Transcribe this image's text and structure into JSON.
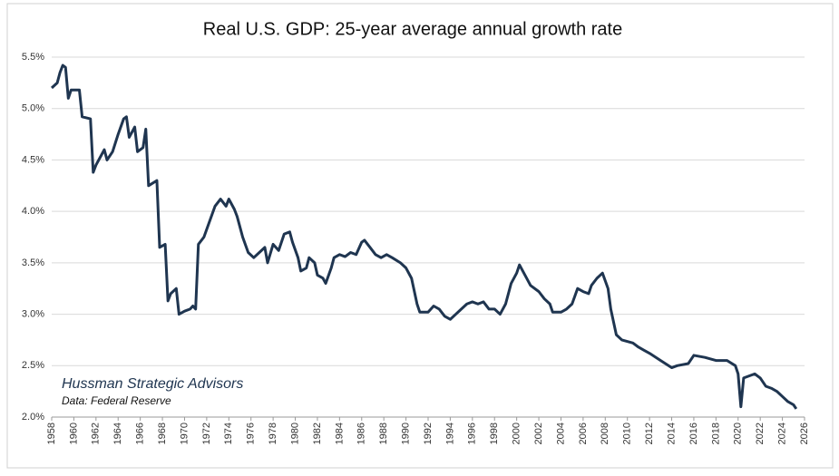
{
  "chart_data": {
    "type": "line",
    "title": "Real U.S. GDP: 25-year average annual growth rate",
    "annotations": [
      "Hussman Strategic Advisors",
      "Data: Federal Reserve"
    ],
    "x": [
      1958.0,
      1958.5,
      1958.75,
      1959.0,
      1959.25,
      1959.5,
      1959.75,
      1960.5,
      1960.75,
      1961.5,
      1961.75,
      1962.0,
      1962.5,
      1962.75,
      1963.0,
      1963.5,
      1964.0,
      1964.5,
      1964.75,
      1965.0,
      1965.5,
      1965.75,
      1966.25,
      1966.5,
      1966.75,
      1967.5,
      1967.75,
      1968.25,
      1968.5,
      1968.75,
      1969.25,
      1969.5,
      1970.0,
      1970.5,
      1970.75,
      1971.0,
      1971.25,
      1971.75,
      1972.25,
      1972.75,
      1973.25,
      1973.75,
      1974.0,
      1974.5,
      1974.75,
      1975.25,
      1975.75,
      1976.25,
      1976.75,
      1977.25,
      1977.5,
      1978.0,
      1978.5,
      1979.0,
      1979.5,
      1979.75,
      1980.25,
      1980.5,
      1981.0,
      1981.25,
      1981.75,
      1982.0,
      1982.5,
      1982.75,
      1983.25,
      1983.5,
      1984.0,
      1984.5,
      1985.0,
      1985.5,
      1986.0,
      1986.25,
      1986.75,
      1987.25,
      1987.75,
      1988.25,
      1988.75,
      1989.5,
      1990.0,
      1990.5,
      1991.0,
      1991.25,
      1992.0,
      1992.5,
      1993.0,
      1993.5,
      1994.0,
      1994.5,
      1995.0,
      1995.5,
      1996.0,
      1996.5,
      1997.0,
      1997.5,
      1998.0,
      1998.5,
      1999.0,
      1999.5,
      2000.0,
      2000.25,
      2000.75,
      2001.25,
      2002.0,
      2002.5,
      2003.0,
      2003.25,
      2004.0,
      2004.5,
      2005.0,
      2005.5,
      2006.0,
      2006.5,
      2006.75,
      2007.25,
      2007.75,
      2008.25,
      2008.5,
      2009.0,
      2009.5,
      2010.5,
      2011.0,
      2011.5,
      2012.0,
      2013.0,
      2014.0,
      2014.5,
      2015.5,
      2016.0,
      2017.0,
      2018.0,
      2019.0,
      2019.75,
      2020.0,
      2020.25,
      2020.5,
      2021.0,
      2021.5,
      2022.0,
      2022.5,
      2023.0,
      2023.5,
      2024.0,
      2024.5,
      2025.0,
      2025.25
    ],
    "series": [
      {
        "name": "25-year average annual growth rate",
        "color": "#1f3550",
        "values": [
          5.2,
          5.25,
          5.35,
          5.42,
          5.4,
          5.1,
          5.18,
          5.18,
          4.92,
          4.9,
          4.38,
          4.45,
          4.55,
          4.6,
          4.5,
          4.58,
          4.75,
          4.9,
          4.92,
          4.72,
          4.82,
          4.58,
          4.62,
          4.8,
          4.25,
          4.3,
          3.65,
          3.68,
          3.13,
          3.2,
          3.25,
          3.0,
          3.03,
          3.05,
          3.08,
          3.05,
          3.68,
          3.75,
          3.9,
          4.05,
          4.12,
          4.05,
          4.12,
          4.02,
          3.95,
          3.75,
          3.6,
          3.55,
          3.6,
          3.65,
          3.5,
          3.68,
          3.62,
          3.78,
          3.8,
          3.7,
          3.55,
          3.42,
          3.45,
          3.55,
          3.5,
          3.38,
          3.35,
          3.3,
          3.45,
          3.55,
          3.58,
          3.56,
          3.6,
          3.58,
          3.7,
          3.72,
          3.65,
          3.58,
          3.55,
          3.58,
          3.55,
          3.5,
          3.45,
          3.35,
          3.1,
          3.02,
          3.02,
          3.08,
          3.05,
          2.98,
          2.95,
          3.0,
          3.05,
          3.1,
          3.12,
          3.1,
          3.12,
          3.05,
          3.05,
          3.0,
          3.1,
          3.3,
          3.4,
          3.48,
          3.38,
          3.28,
          3.22,
          3.15,
          3.1,
          3.02,
          3.02,
          3.05,
          3.1,
          3.25,
          3.22,
          3.2,
          3.28,
          3.35,
          3.4,
          3.25,
          3.05,
          2.8,
          2.75,
          2.72,
          2.68,
          2.65,
          2.62,
          2.55,
          2.48,
          2.5,
          2.52,
          2.6,
          2.58,
          2.55,
          2.55,
          2.5,
          2.42,
          2.1,
          2.38,
          2.4,
          2.42,
          2.38,
          2.3,
          2.28,
          2.25,
          2.2,
          2.15,
          2.12,
          2.08
        ]
      }
    ],
    "xlim": [
      1958,
      2026
    ],
    "xticks": [
      1958,
      1960,
      1962,
      1964,
      1966,
      1968,
      1970,
      1972,
      1974,
      1976,
      1978,
      1980,
      1982,
      1984,
      1986,
      1988,
      1990,
      1992,
      1994,
      1996,
      1998,
      2000,
      2002,
      2004,
      2006,
      2008,
      2010,
      2012,
      2014,
      2016,
      2018,
      2020,
      2022,
      2024,
      2026
    ],
    "ylim": [
      2.0,
      5.5
    ],
    "yticks": [
      {
        "value": 2.0,
        "label": "2.0%"
      },
      {
        "value": 2.5,
        "label": "2.5%"
      },
      {
        "value": 3.0,
        "label": "3.0%"
      },
      {
        "value": 3.5,
        "label": "3.5%"
      },
      {
        "value": 4.0,
        "label": "4.0%"
      },
      {
        "value": 4.5,
        "label": "4.5%"
      },
      {
        "value": 5.0,
        "label": "5.0%"
      },
      {
        "value": 5.5,
        "label": "5.5%"
      }
    ],
    "grid": true
  }
}
